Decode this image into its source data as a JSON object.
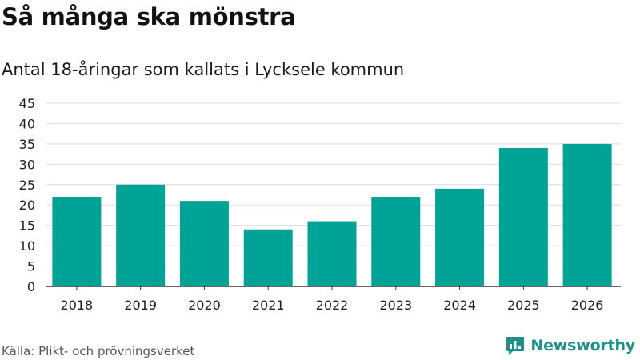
{
  "header": {
    "title": "Så många ska mönstra",
    "subtitle": "Antal 18-åringar som kallats i Lycksele kommun"
  },
  "footer": {
    "source": "Källa: Plikt- och prövningsverket",
    "brand": "Newsworthy",
    "brand_icon": "newsworthy-logo-icon"
  },
  "colors": {
    "bar": "#00a396",
    "grid": "#dddddd",
    "axis": "#333333",
    "brand": "#1f8f89"
  },
  "chart_data": {
    "type": "bar",
    "title": "Så många ska mönstra",
    "subtitle": "Antal 18-åringar som kallats i Lycksele kommun",
    "xlabel": "",
    "ylabel": "",
    "categories": [
      "2018",
      "2019",
      "2020",
      "2021",
      "2022",
      "2023",
      "2024",
      "2025",
      "2026"
    ],
    "values": [
      22,
      25,
      21,
      14,
      16,
      22,
      24,
      34,
      35
    ],
    "ylim": [
      0,
      45
    ],
    "yticks": [
      0,
      5,
      10,
      15,
      20,
      25,
      30,
      35,
      40,
      45
    ],
    "grid": true,
    "legend": "none"
  }
}
